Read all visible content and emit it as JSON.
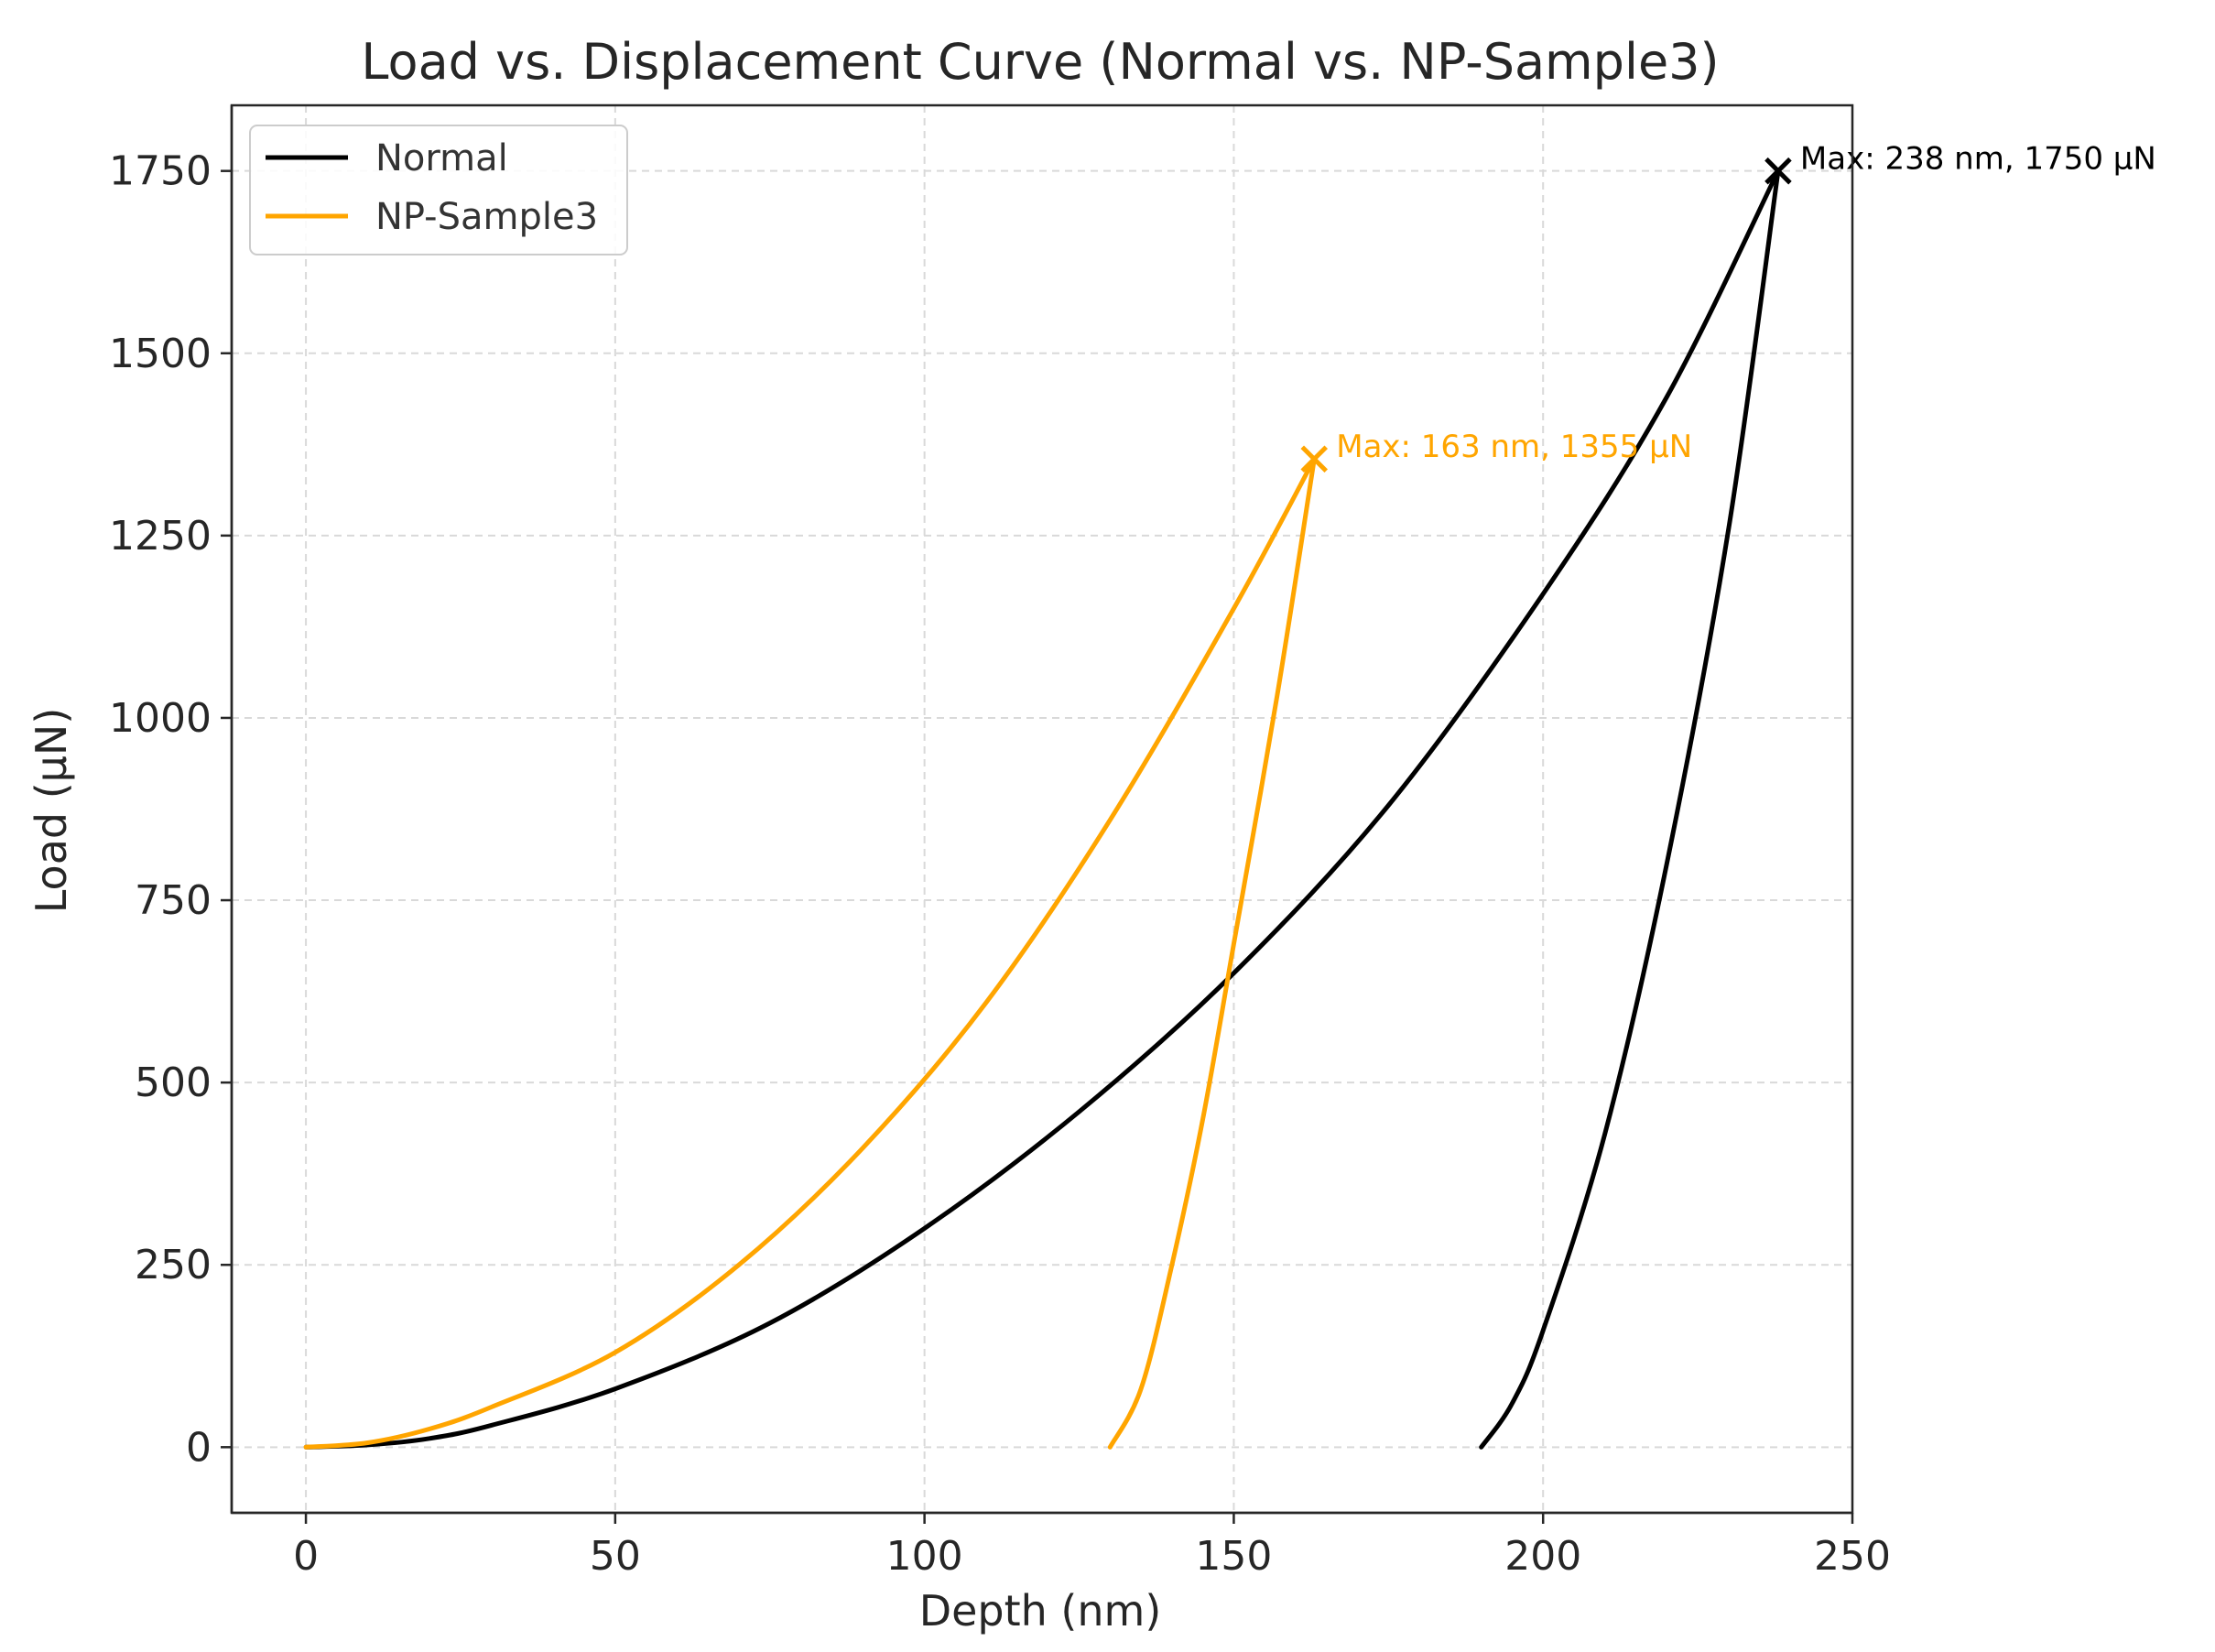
{
  "chart_data": {
    "type": "line",
    "title": "Load vs. Displacement Curve (Normal vs. NP-Sample3)",
    "xlabel": "Depth (nm)",
    "ylabel": "Load (µN)",
    "xlim": [
      -12,
      250
    ],
    "ylim": [
      -90,
      1840
    ],
    "xticks": [
      0,
      50,
      100,
      150,
      200,
      250
    ],
    "yticks": [
      0,
      250,
      500,
      750,
      1000,
      1250,
      1500,
      1750
    ],
    "grid": true,
    "legend_position": "top-left",
    "series": [
      {
        "name": "Normal",
        "color": "#000000",
        "loading": {
          "x": [
            0,
            10,
            20,
            30,
            50,
            75,
            100,
            125,
            150,
            175,
            200,
            220,
            238
          ],
          "y": [
            0,
            3,
            12,
            30,
            80,
            170,
            300,
            460,
            650,
            880,
            1170,
            1440,
            1750
          ]
        },
        "unloading": {
          "x": [
            238,
            230,
            220,
            210,
            200,
            195,
            190
          ],
          "y": [
            1750,
            1260,
            800,
            430,
            160,
            60,
            0
          ]
        }
      },
      {
        "name": "NP-Sample3",
        "color": "#FFA500",
        "loading": {
          "x": [
            0,
            10,
            20,
            30,
            50,
            70,
            90,
            110,
            130,
            150,
            163
          ],
          "y": [
            0,
            6,
            25,
            55,
            130,
            250,
            410,
            610,
            860,
            1150,
            1355
          ]
        },
        "unloading": {
          "x": [
            163,
            157,
            150,
            145,
            140,
            135,
            130
          ],
          "y": [
            1355,
            1030,
            690,
            450,
            250,
            80,
            0
          ]
        }
      }
    ],
    "annotations": [
      {
        "label": "Max: 238 nm, 1750 µN",
        "x": 238,
        "y": 1750,
        "color": "#000000"
      },
      {
        "label": "Max: 163 nm, 1355 µN",
        "x": 163,
        "y": 1355,
        "color": "#FFA500"
      }
    ]
  }
}
